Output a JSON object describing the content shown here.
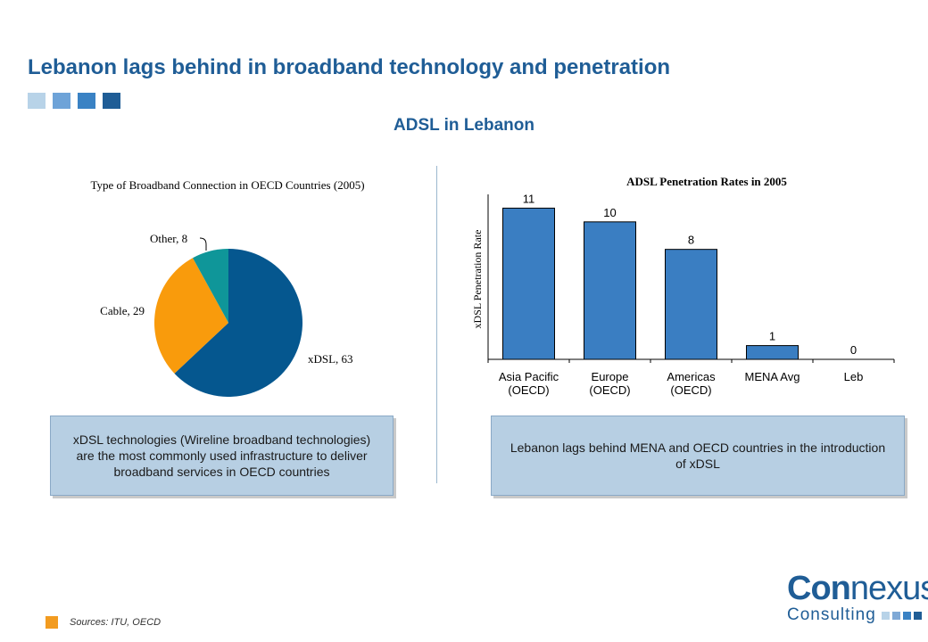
{
  "header": {
    "title": "Lebanon lags behind in broadband technology and penetration",
    "subtitle": "ADSL in Lebanon",
    "squares": [
      "#b8d3e8",
      "#6ea3d8",
      "#3a82c4",
      "#1f5d96"
    ]
  },
  "chart_data": [
    {
      "type": "pie",
      "title": "Type of Broadband Connection in OECD Countries (2005)",
      "slices": [
        {
          "label": "xDSL",
          "value": 63,
          "color": "#05578f",
          "text": "xDSL, 63"
        },
        {
          "label": "Cable",
          "value": 29,
          "color": "#f99b0c",
          "text": "Cable, 29"
        },
        {
          "label": "Other",
          "value": 8,
          "color": "#0f9699",
          "text": "Other, 8"
        }
      ]
    },
    {
      "type": "bar",
      "title": "ADSL Penetration Rates in 2005",
      "ylabel": "xDSL Penetration Rate",
      "xlabel": "",
      "categories": [
        [
          "Asia Pacific",
          "(OECD)"
        ],
        [
          "Europe",
          "(OECD)"
        ],
        [
          "Americas",
          "(OECD)"
        ],
        [
          "MENA Avg"
        ],
        [
          "Leb"
        ]
      ],
      "values": [
        11,
        10,
        8,
        1,
        0
      ],
      "ylim": [
        0,
        12
      ],
      "color": "#3a7ec2"
    }
  ],
  "boxes": {
    "left": "xDSL technologies (Wireline broadband technologies) are the most commonly used infrastructure to deliver broadband services in OECD countries",
    "right": "Lebanon lags behind MENA and OECD countries in the introduction of xDSL"
  },
  "footer": {
    "source": "Sources: ITU, OECD"
  },
  "logo": {
    "part1": "Con",
    "part2": "nexus",
    "tagline": "Consulting",
    "dot_colors": [
      "#b8d3e8",
      "#7fa9d6",
      "#3a82c4",
      "#1f5d96"
    ]
  }
}
